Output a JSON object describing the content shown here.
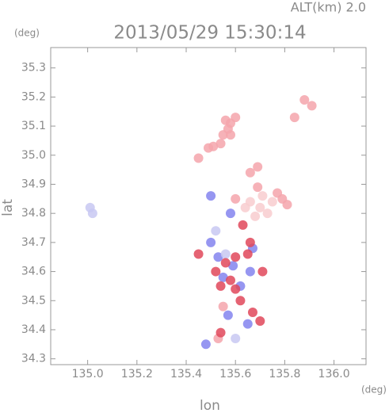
{
  "chart_data": {
    "type": "scatter",
    "title": "2013/05/29 15:30:14",
    "subtitle": "ALT(km) 2.0",
    "x_label": "lon",
    "y_label": "lat",
    "x_unit": "(deg)",
    "y_unit": "(deg)",
    "xlim": [
      134.85,
      136.13
    ],
    "ylim": [
      34.28,
      35.37
    ],
    "xticks": [
      {
        "value": 135,
        "label": "135.0"
      },
      135.2,
      135.4,
      135.6,
      135.8,
      {
        "value": 136,
        "label": "136.0"
      }
    ],
    "yticks": [
      34.3,
      34.4,
      34.5,
      34.6,
      34.7,
      34.8,
      34.9,
      {
        "value": 35,
        "label": "35.0"
      },
      35.1,
      35.2,
      35.3
    ],
    "grid": false,
    "series": [
      {
        "color": "#f4a4ac",
        "x": [
          135.56,
          135.58,
          135.57,
          135.55,
          135.58,
          135.54,
          135.51,
          135.49,
          135.6,
          135.88,
          135.91,
          135.84,
          135.45,
          135.69,
          135.66,
          135.79,
          135.77,
          135.81,
          135.69,
          135.6,
          135.55,
          135.53
        ],
        "y": [
          35.12,
          35.11,
          35.09,
          35.07,
          35.07,
          35.04,
          35.03,
          35.025,
          35.13,
          35.19,
          35.17,
          35.13,
          34.99,
          34.96,
          34.94,
          34.85,
          34.87,
          34.83,
          34.89,
          34.85,
          34.48,
          34.37
        ]
      },
      {
        "color": "#f8cccf",
        "x": [
          135.66,
          135.7,
          135.73,
          135.68,
          135.64,
          135.75,
          135.71
        ],
        "y": [
          34.84,
          34.82,
          34.8,
          34.79,
          34.82,
          34.84,
          34.86
        ]
      },
      {
        "color": "#8484ee",
        "x": [
          135.5,
          135.58,
          135.53,
          135.59,
          135.67,
          135.5,
          135.62,
          135.57,
          135.65,
          135.48,
          135.55,
          135.66
        ],
        "y": [
          34.86,
          34.8,
          34.65,
          34.62,
          34.68,
          34.7,
          34.55,
          34.45,
          34.42,
          34.35,
          34.58,
          34.6
        ]
      },
      {
        "color": "#c8c8f2",
        "x": [
          135.01,
          135.02,
          135.6,
          135.56,
          135.52
        ],
        "y": [
          34.82,
          34.8,
          34.37,
          34.66,
          34.74
        ]
      },
      {
        "color": "#e0485a",
        "x": [
          135.56,
          135.58,
          135.62,
          135.67,
          135.7,
          135.54,
          135.45,
          135.6,
          135.66,
          135.54,
          135.6,
          135.63,
          135.71,
          135.65,
          135.52
        ],
        "y": [
          34.63,
          34.57,
          34.5,
          34.46,
          34.43,
          34.39,
          34.66,
          34.54,
          34.7,
          34.55,
          34.65,
          34.76,
          34.6,
          34.66,
          34.6
        ]
      }
    ]
  }
}
